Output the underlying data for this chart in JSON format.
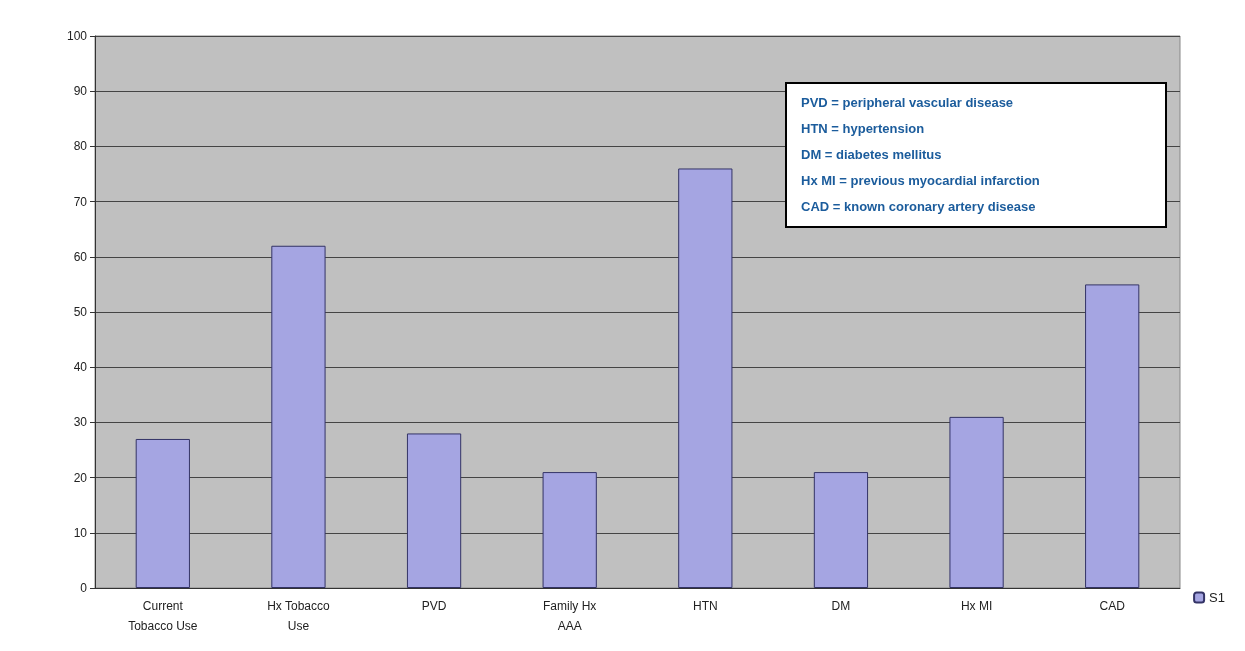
{
  "chart_data": {
    "type": "bar",
    "categories": [
      "Current\nTobacco Use",
      "Hx Tobacco\nUse",
      "PVD",
      "Family Hx\nAAA",
      "HTN",
      "DM",
      "Hx MI",
      "CAD"
    ],
    "series": [
      {
        "name": "S1",
        "color": "#a5a5e2",
        "values": [
          27,
          62,
          28,
          21,
          76,
          21,
          31,
          55
        ]
      }
    ],
    "ylim": [
      0,
      100
    ],
    "yticks": [
      0,
      10,
      20,
      30,
      40,
      50,
      60,
      70,
      80,
      90,
      100
    ],
    "grid": "y",
    "legend": "bottom right",
    "annotations": [
      "PVD = peripheral vascular disease",
      "HTN = hypertension",
      "DM = diabetes mellitus",
      "Hx MI = previous myocardial infarction",
      "CAD = known coronary artery disease"
    ]
  }
}
